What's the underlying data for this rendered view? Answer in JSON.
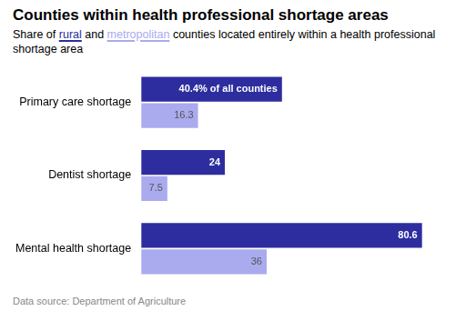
{
  "chart_data": {
    "type": "bar",
    "orientation": "horizontal",
    "title": "Counties within health professional shortage areas",
    "subtitle": "Share of rural and metropolitan counties located entirely within a health professional shortage area",
    "annotations": [
      "Data source: Department of Agriculture"
    ],
    "categories": [
      "Primary care shortage",
      "Dentist shortage",
      "Mental health shortage"
    ],
    "series": [
      {
        "name": "rural",
        "color": "#2D2D9F",
        "values": [
          40.4,
          24.0,
          80.6
        ],
        "value_labels": [
          "40.4% of all counties",
          "24",
          "80.6"
        ]
      },
      {
        "name": "metropolitan",
        "color": "#AAAAEE",
        "values": [
          16.3,
          7.5,
          36.0
        ],
        "value_labels": [
          "16.3",
          "7.5",
          "36"
        ]
      }
    ],
    "xlim": [
      0,
      88
    ],
    "grid": false,
    "legend": false,
    "data_labels": true,
    "tick_labels": "y"
  }
}
